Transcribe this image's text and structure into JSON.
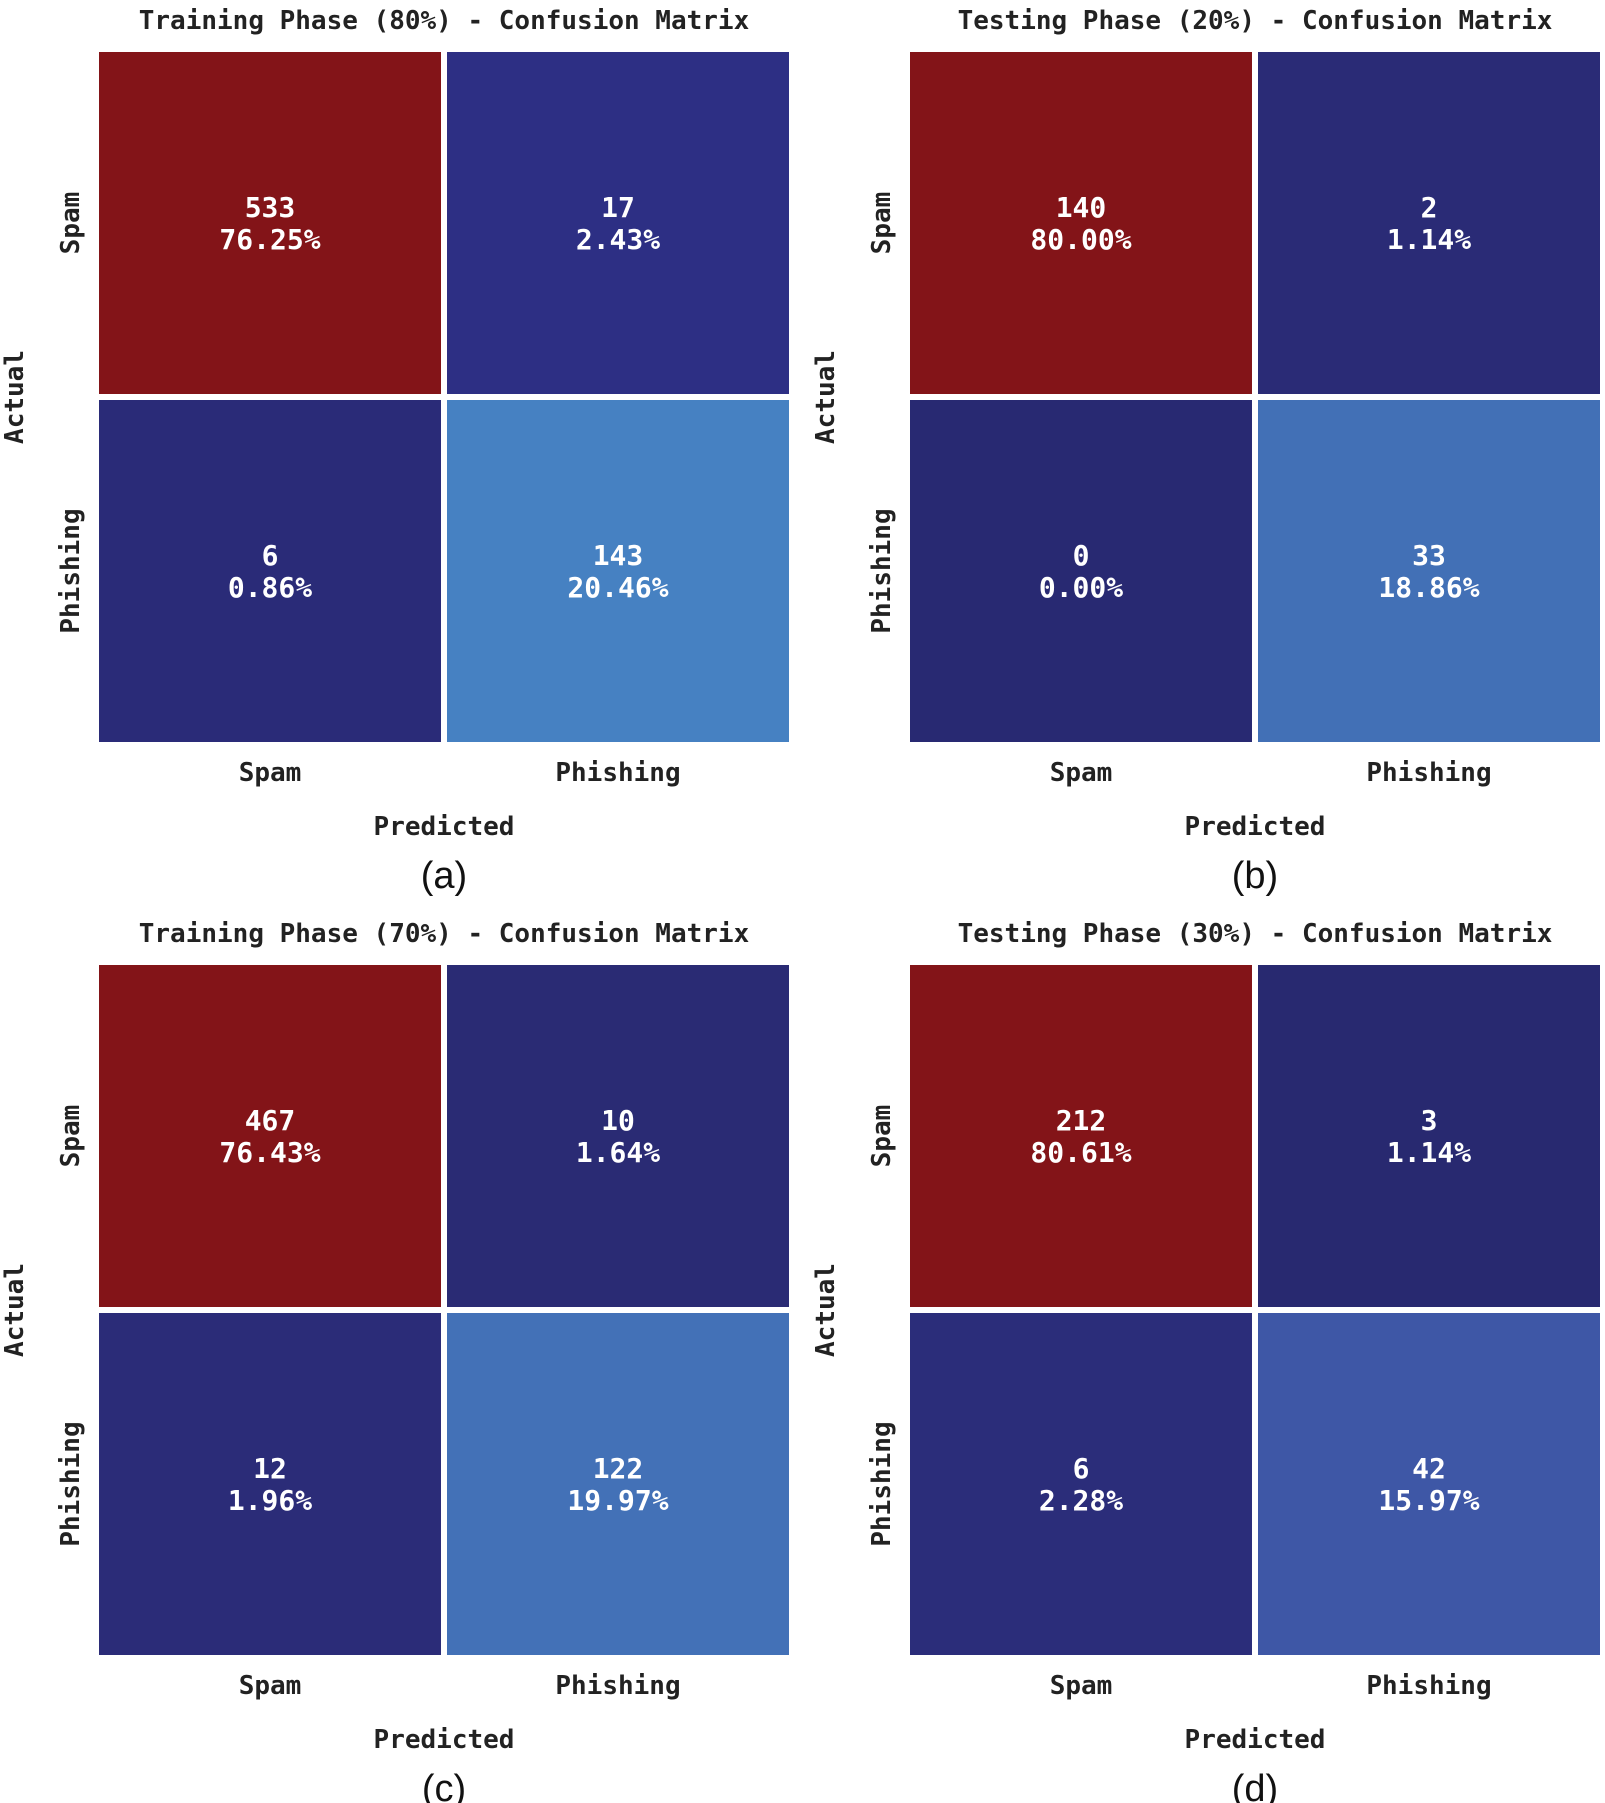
{
  "chart_data": [
    {
      "type": "heatmap",
      "panel": "a",
      "caption": "(a)",
      "title": "Training Phase (80%) - Confusion Matrix",
      "xlabel": "Predicted",
      "ylabel": "Actual",
      "x_categories": [
        "Spam",
        "Phishing"
      ],
      "y_categories": [
        "Spam",
        "Phishing"
      ],
      "cells": [
        {
          "row": 0,
          "col": 0,
          "count": "533",
          "percent": "76.25%",
          "color": "#831418"
        },
        {
          "row": 0,
          "col": 1,
          "count": "17",
          "percent": "2.43%",
          "color": "#2d2f84"
        },
        {
          "row": 1,
          "col": 0,
          "count": "6",
          "percent": "0.86%",
          "color": "#2a2b78"
        },
        {
          "row": 1,
          "col": 1,
          "count": "143",
          "percent": "20.46%",
          "color": "#4681c2"
        }
      ]
    },
    {
      "type": "heatmap",
      "panel": "b",
      "caption": "(b)",
      "title": "Testing Phase (20%) - Confusion Matrix",
      "xlabel": "Predicted",
      "ylabel": "Actual",
      "x_categories": [
        "Spam",
        "Phishing"
      ],
      "y_categories": [
        "Spam",
        "Phishing"
      ],
      "cells": [
        {
          "row": 0,
          "col": 0,
          "count": "140",
          "percent": "80.00%",
          "color": "#831418"
        },
        {
          "row": 0,
          "col": 1,
          "count": "2",
          "percent": "1.14%",
          "color": "#2a2b76"
        },
        {
          "row": 1,
          "col": 0,
          "count": "0",
          "percent": "0.00%",
          "color": "#282972"
        },
        {
          "row": 1,
          "col": 1,
          "count": "33",
          "percent": "18.86%",
          "color": "#4270b6"
        }
      ]
    },
    {
      "type": "heatmap",
      "panel": "c",
      "caption": "(c)",
      "title": "Training Phase (70%) - Confusion Matrix",
      "xlabel": "Predicted",
      "ylabel": "Actual",
      "x_categories": [
        "Spam",
        "Phishing"
      ],
      "y_categories": [
        "Spam",
        "Phishing"
      ],
      "cells": [
        {
          "row": 0,
          "col": 0,
          "count": "467",
          "percent": "76.43%",
          "color": "#831418"
        },
        {
          "row": 0,
          "col": 1,
          "count": "10",
          "percent": "1.64%",
          "color": "#2a2b74"
        },
        {
          "row": 1,
          "col": 0,
          "count": "12",
          "percent": "1.96%",
          "color": "#2b2c78"
        },
        {
          "row": 1,
          "col": 1,
          "count": "122",
          "percent": "19.97%",
          "color": "#4371b7"
        }
      ]
    },
    {
      "type": "heatmap",
      "panel": "d",
      "caption": "(d)",
      "title": "Testing Phase (30%) - Confusion Matrix",
      "xlabel": "Predicted",
      "ylabel": "Actual",
      "x_categories": [
        "Spam",
        "Phishing"
      ],
      "y_categories": [
        "Spam",
        "Phishing"
      ],
      "cells": [
        {
          "row": 0,
          "col": 0,
          "count": "212",
          "percent": "80.61%",
          "color": "#831418"
        },
        {
          "row": 0,
          "col": 1,
          "count": "3",
          "percent": "1.14%",
          "color": "#282970"
        },
        {
          "row": 1,
          "col": 0,
          "count": "6",
          "percent": "2.28%",
          "color": "#2b2d7a"
        },
        {
          "row": 1,
          "col": 1,
          "count": "42",
          "percent": "15.97%",
          "color": "#3e57a6"
        }
      ]
    }
  ]
}
